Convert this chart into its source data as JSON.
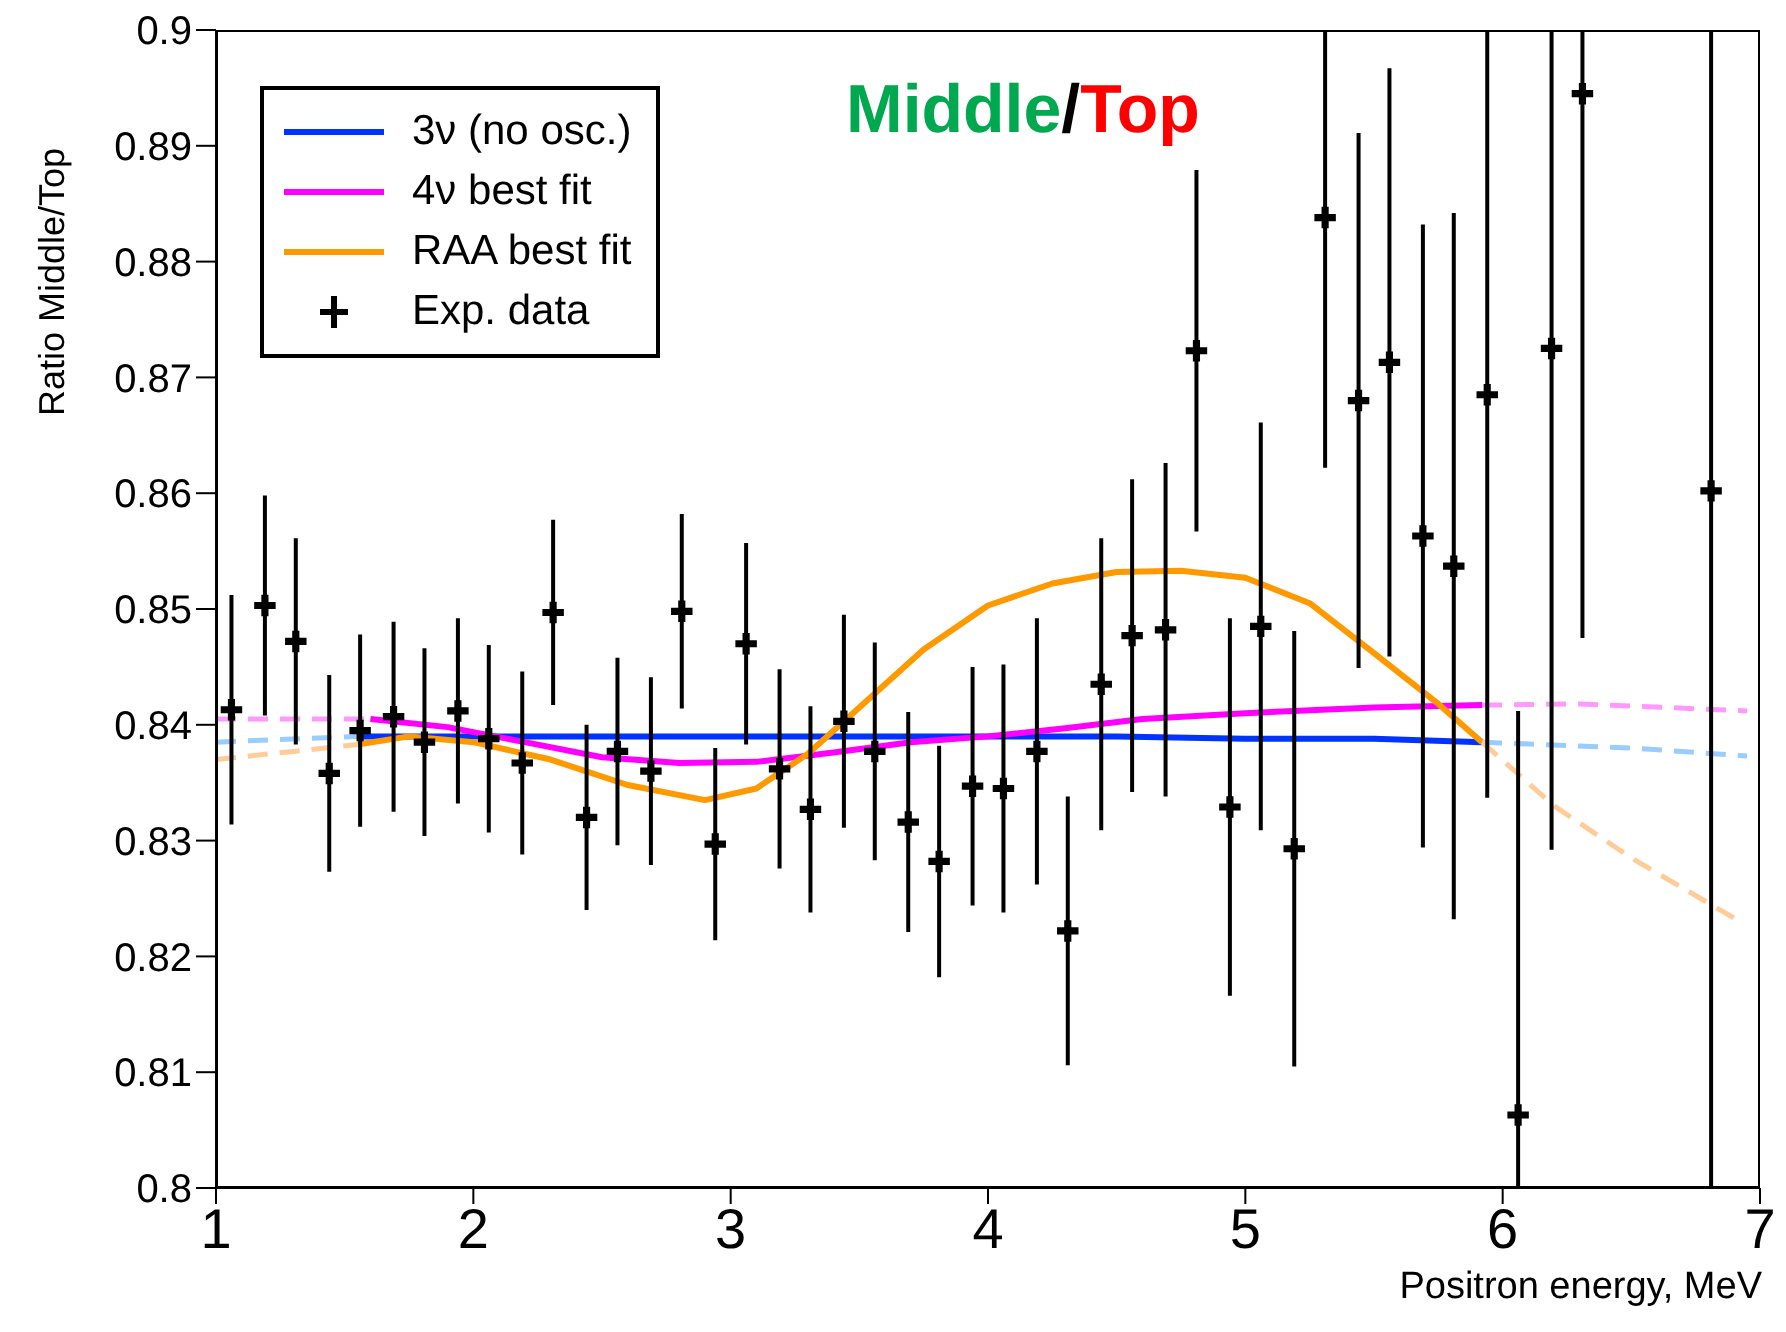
{
  "chart_data": {
    "type": "line",
    "title": "Middle/Top",
    "xlabel": "Positron energy, MeV",
    "ylabel": "Ratio Middle/Top",
    "xlim": [
      1,
      7
    ],
    "xticks": [
      1,
      2,
      3,
      4,
      5,
      6,
      7
    ],
    "ylim": [
      0.8,
      0.9
    ],
    "yticks": [
      0.8,
      0.81,
      0.82,
      0.83,
      0.84,
      0.85,
      0.86,
      0.87,
      0.88,
      0.89,
      0.9
    ],
    "grid": false,
    "legend": "top left",
    "marker": "none",
    "series": [
      {
        "name": "3ν (no osc.)",
        "color": "#0033ff",
        "line_style": "solid",
        "x": [
          1.55,
          2.5,
          3.5,
          4.5,
          5.0,
          5.5,
          5.92
        ],
        "values": [
          0.839,
          0.839,
          0.839,
          0.839,
          0.8388,
          0.8388,
          0.8385
        ]
      },
      {
        "name": "4ν best fit",
        "color": "#ff00ff",
        "line_style": "solid",
        "x": [
          1.6,
          1.9,
          2.2,
          2.5,
          2.8,
          3.1,
          3.4,
          3.7,
          4.0,
          4.3,
          4.6,
          5.0,
          5.5,
          5.92
        ],
        "values": [
          0.8405,
          0.8398,
          0.8385,
          0.8372,
          0.8367,
          0.8368,
          0.8376,
          0.8385,
          0.839,
          0.8397,
          0.8405,
          0.841,
          0.8415,
          0.8417
        ]
      },
      {
        "name": "RAA best fit",
        "color": "#ff9900",
        "line_style": "solid",
        "x": [
          1.55,
          1.75,
          2.0,
          2.3,
          2.6,
          2.9,
          3.1,
          3.3,
          3.5,
          3.75,
          4.0,
          4.25,
          4.5,
          4.75,
          5.0,
          5.25,
          5.5,
          5.75,
          5.92
        ],
        "values": [
          0.8383,
          0.839,
          0.8385,
          0.837,
          0.8348,
          0.8335,
          0.8345,
          0.8375,
          0.8415,
          0.8465,
          0.8503,
          0.8522,
          0.8532,
          0.8533,
          0.8527,
          0.8505,
          0.8462,
          0.8418,
          0.8385
        ]
      },
      {
        "color": "#99ccff",
        "line_style": "dashed",
        "x": [
          1.0,
          1.55
        ],
        "values": [
          0.8385,
          0.839
        ]
      },
      {
        "color": "#99ccff",
        "line_style": "dashed",
        "x": [
          5.92,
          6.5,
          6.95
        ],
        "values": [
          0.8385,
          0.838,
          0.8373
        ]
      },
      {
        "color": "#ff99ff",
        "line_style": "dashed",
        "x": [
          1.0,
          1.6
        ],
        "values": [
          0.8405,
          0.8405
        ]
      },
      {
        "color": "#ff99ff",
        "line_style": "dashed",
        "x": [
          5.92,
          6.3,
          6.95
        ],
        "values": [
          0.8417,
          0.8418,
          0.8412
        ]
      },
      {
        "color": "#ffcc99",
        "line_style": "dashed",
        "x": [
          1.0,
          1.3,
          1.55
        ],
        "values": [
          0.837,
          0.8377,
          0.8383
        ]
      },
      {
        "color": "#ffcc99",
        "line_style": "dashed",
        "x": [
          5.92,
          6.2,
          6.5,
          6.9
        ],
        "values": [
          0.8385,
          0.833,
          0.8285,
          0.8233
        ]
      },
      {
        "name": "Exp. data",
        "type": "scatter",
        "color": "#000000",
        "marker": "cross",
        "x": [
          1.06,
          1.19,
          1.31,
          1.44,
          1.56,
          1.69,
          1.81,
          1.94,
          2.06,
          2.19,
          2.31,
          2.44,
          2.56,
          2.69,
          2.81,
          2.94,
          3.06,
          3.19,
          3.31,
          3.44,
          3.56,
          3.69,
          3.81,
          3.94,
          4.06,
          4.19,
          4.31,
          4.44,
          4.56,
          4.69,
          4.81,
          4.94,
          5.06,
          5.19,
          5.31,
          5.44,
          5.56,
          5.69,
          5.81,
          5.94,
          6.06,
          6.19,
          6.31,
          6.81
        ],
        "values": [
          0.8413,
          0.8503,
          0.8472,
          0.8358,
          0.8395,
          0.8407,
          0.8385,
          0.8412,
          0.8388,
          0.8367,
          0.8497,
          0.832,
          0.8377,
          0.836,
          0.8498,
          0.8297,
          0.847,
          0.8362,
          0.8327,
          0.8403,
          0.8377,
          0.8316,
          0.8282,
          0.8347,
          0.8345,
          0.8377,
          0.8222,
          0.8435,
          0.8477,
          0.8482,
          0.8723,
          0.8329,
          0.8485,
          0.8293,
          0.8838,
          0.868,
          0.8713,
          0.8563,
          0.8537,
          0.8685,
          0.8063,
          0.8725,
          0.8945,
          0.8602
        ],
        "errors": [
          0.0099,
          0.0095,
          0.0089,
          0.0085,
          0.0083,
          0.0082,
          0.0081,
          0.008,
          0.0081,
          0.0079,
          0.008,
          0.008,
          0.0081,
          0.0081,
          0.0084,
          0.0083,
          0.0087,
          0.0086,
          0.0089,
          0.0092,
          0.0094,
          0.0095,
          0.01,
          0.0103,
          0.0107,
          0.0115,
          0.0116,
          0.0126,
          0.0135,
          0.0144,
          0.0156,
          0.0163,
          0.0176,
          0.0188,
          [
            0.8622,
            0.9
          ],
          0.0231,
          0.0254,
          0.0269,
          0.0305,
          [
            0.8337,
            0.9
          ],
          [
            0.8,
            0.8412
          ],
          [
            0.8292,
            0.9
          ],
          [
            0.8475,
            0.9
          ],
          [
            0.8,
            0.9
          ]
        ]
      }
    ]
  }
}
